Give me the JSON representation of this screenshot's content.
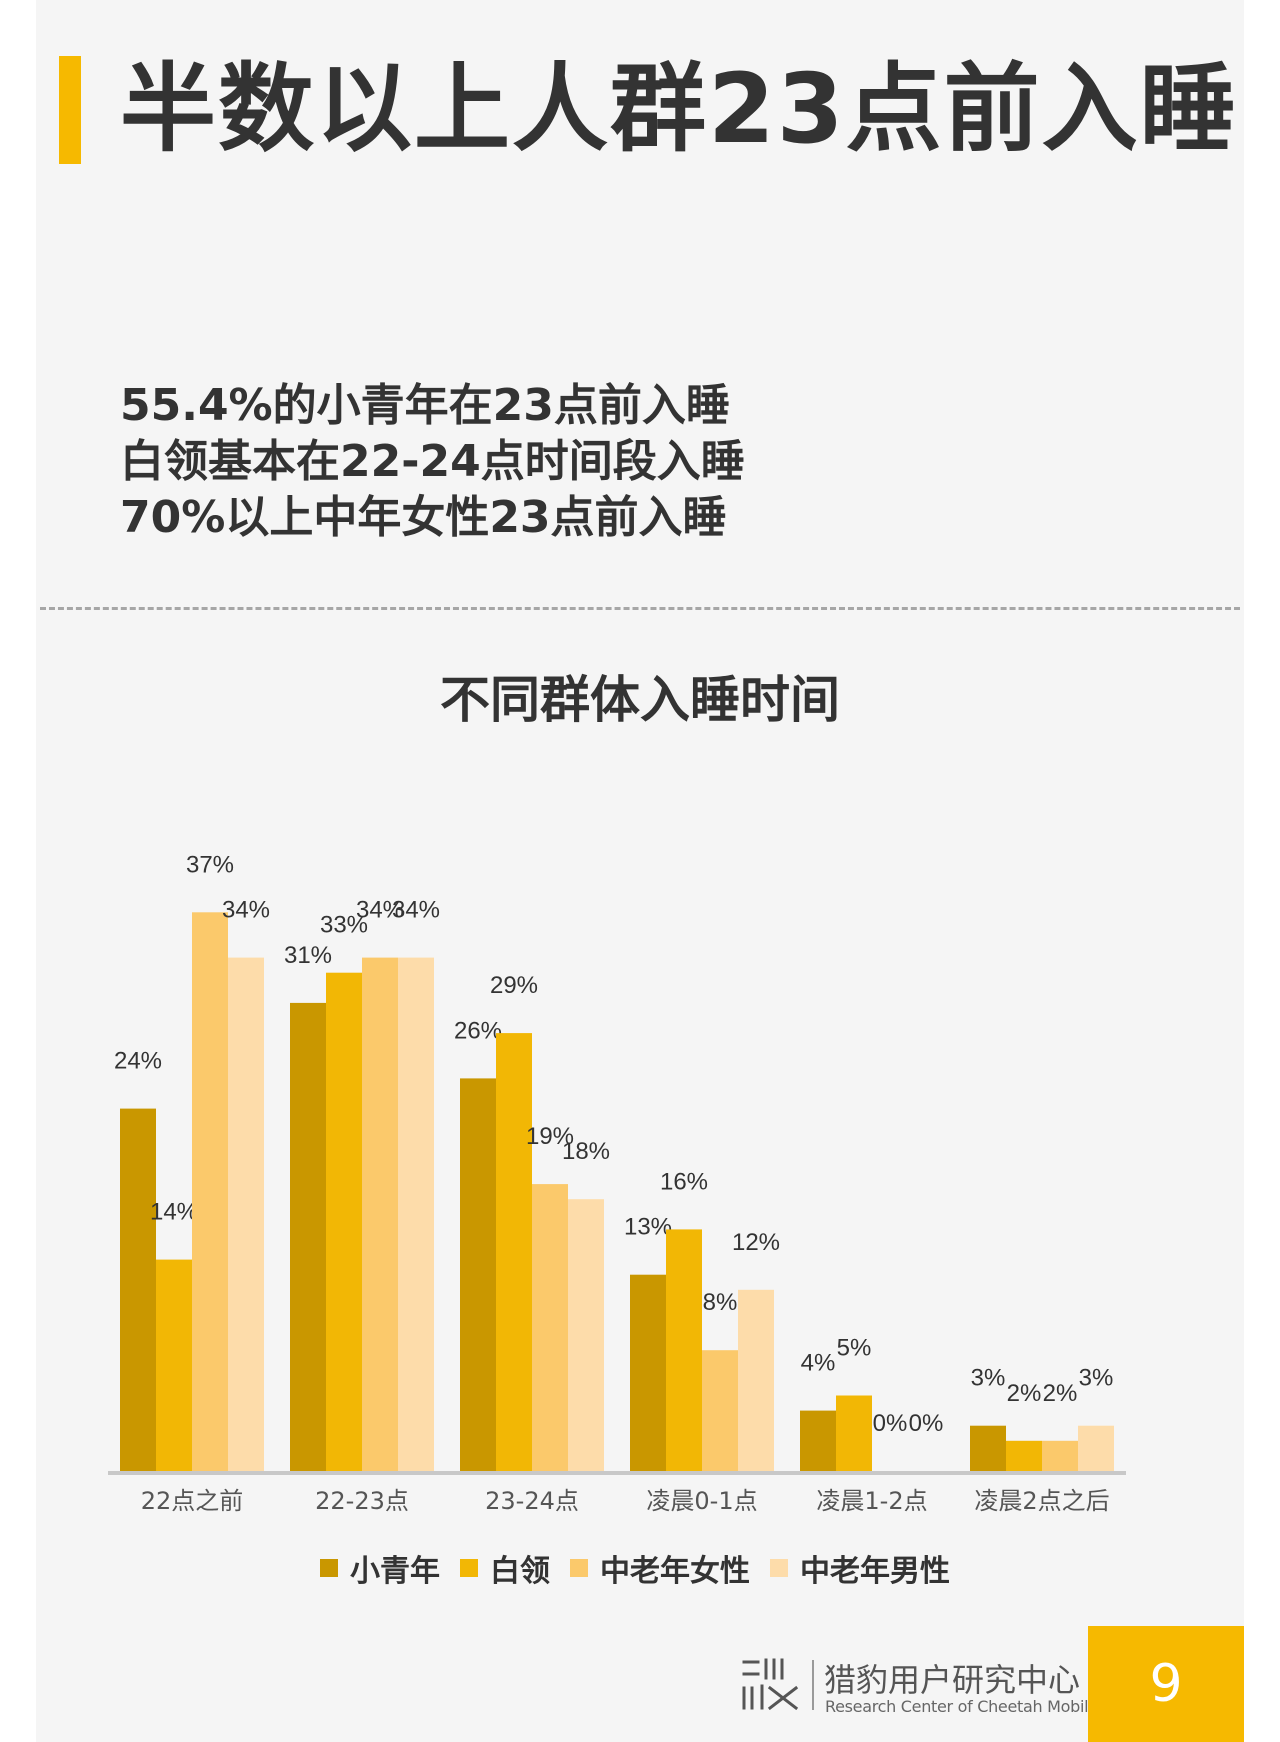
{
  "header": {
    "title": "半数以上人群23点前入睡",
    "summary_lines": [
      "55.4%的小青年在23点前入睡",
      "白领基本在22-24点时间段入睡",
      "70%以上中年女性23点前入睡"
    ]
  },
  "colors": {
    "accent": "#f6b900",
    "text": "#333333",
    "background": "#f5f5f5"
  },
  "chart_data": {
    "type": "bar",
    "title": "不同群体入睡时间",
    "categories": [
      "22点之前",
      "22-23点",
      "23-24点",
      "凌晨0-1点",
      "凌晨1-2点",
      "凌晨2点之后"
    ],
    "series": [
      {
        "name": "小青年",
        "color": "#c99700",
        "values": [
          24,
          31,
          26,
          13,
          4,
          3
        ]
      },
      {
        "name": "白领",
        "color": "#f2b705",
        "values": [
          14,
          33,
          29,
          16,
          5,
          2
        ]
      },
      {
        "name": "中老年女性",
        "color": "#fbc96b",
        "values": [
          37,
          34,
          19,
          8,
          0,
          2
        ]
      },
      {
        "name": "中老年男性",
        "color": "#fddcaa",
        "values": [
          34,
          34,
          18,
          12,
          0,
          3
        ]
      }
    ],
    "value_labels": [
      [
        "24%",
        "31%",
        "26%",
        "13%",
        "4%",
        "3%"
      ],
      [
        "14%",
        "33%",
        "29%",
        "16%",
        "5%",
        "2%"
      ],
      [
        "37%",
        "34%",
        "19%",
        "8%",
        "0%",
        "2%"
      ],
      [
        "34%",
        "34%",
        "18%",
        "12%",
        "0%",
        "3%"
      ]
    ],
    "ylim": [
      0,
      40
    ],
    "grid": false,
    "legend": "bottom"
  },
  "footer": {
    "org_cn": "猎豹用户研究中心",
    "org_en": "Research Center of Cheetah Mobile",
    "page_number": "9"
  }
}
